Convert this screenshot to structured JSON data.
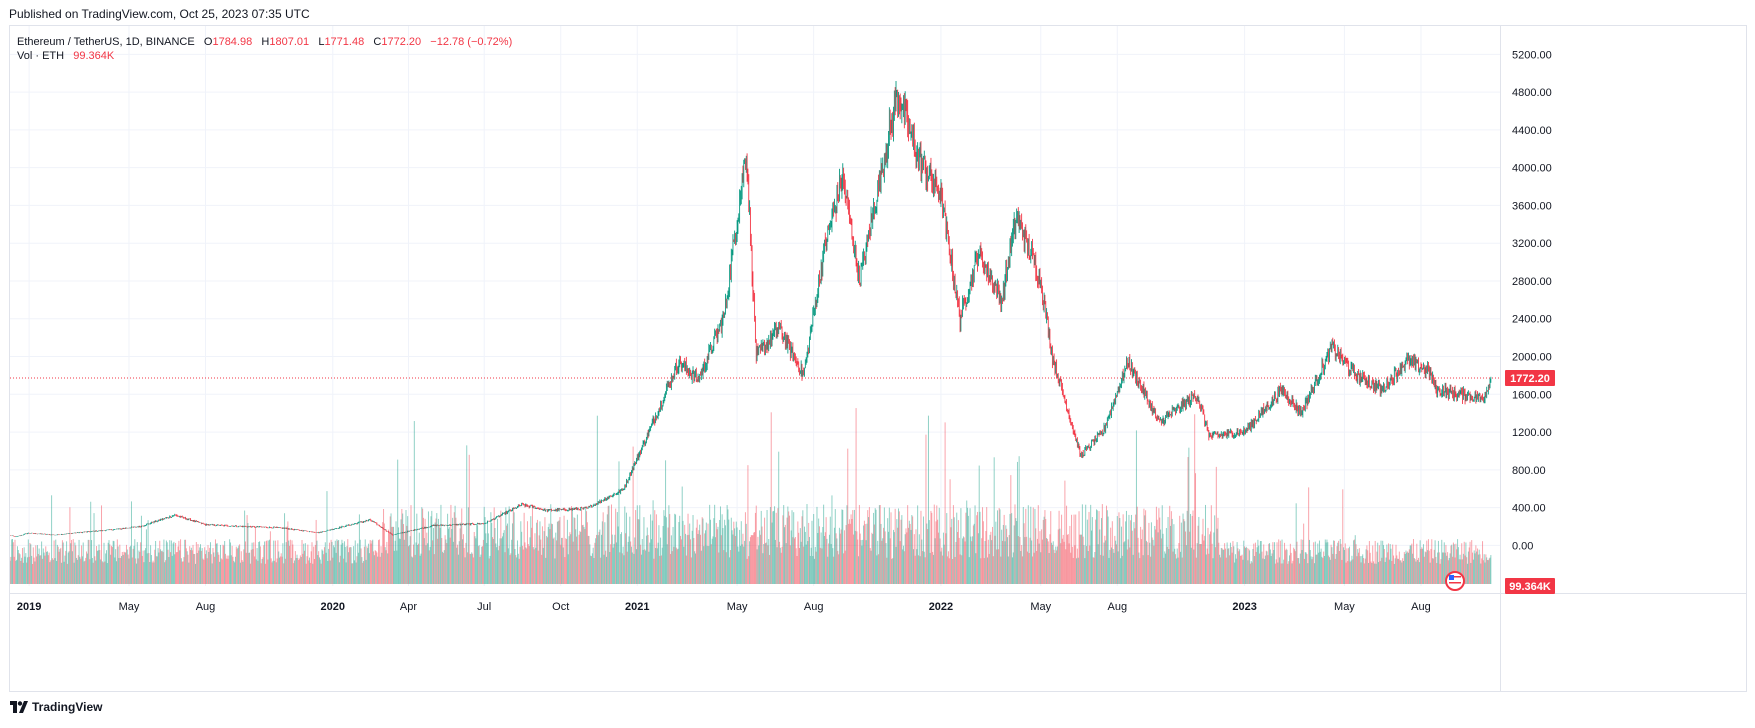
{
  "header": {
    "published": "Published on TradingView.com, Oct 25, 2023 07:35 UTC"
  },
  "legend": {
    "symbol": "Ethereum / TetherUS, 1D, BINANCE",
    "o_label": "O",
    "o_value": "1784.98",
    "h_label": "H",
    "h_value": "1807.01",
    "l_label": "L",
    "l_value": "1771.48",
    "c_label": "C",
    "c_value": "1772.20",
    "change": "−12.78 (−0.72%)",
    "vol_label": "Vol · ETH",
    "vol_value": "99.364K"
  },
  "footer": {
    "brand": "TradingView"
  },
  "colors": {
    "up": "#089981",
    "down": "#f23645",
    "grid": "#f0f3fa",
    "axis_text": "#131722",
    "last_price": "#f23645"
  },
  "chart_data": {
    "type": "candlestick",
    "title": "Ethereum / TetherUS, 1D, BINANCE",
    "y_ticks": [
      "0.00",
      "400.00",
      "800.00",
      "1200.00",
      "1600.00",
      "2000.00",
      "2400.00",
      "2800.00",
      "3200.00",
      "3600.00",
      "4000.00",
      "4400.00",
      "4800.00",
      "5200.00"
    ],
    "y_tick_values": [
      0,
      400,
      800,
      1200,
      1600,
      2000,
      2400,
      2800,
      3200,
      3600,
      4000,
      4400,
      4800,
      5200
    ],
    "ylim": [
      -430,
      5500
    ],
    "x_ticks": [
      "2019",
      "May",
      "Aug",
      "2020",
      "Apr",
      "Jul",
      "Oct",
      "2021",
      "May",
      "Aug",
      "2022",
      "May",
      "Aug",
      "2023",
      "May",
      "Aug"
    ],
    "x_tick_dates": [
      "2019-01-01",
      "2019-05-01",
      "2019-08-01",
      "2020-01-01",
      "2020-04-01",
      "2020-07-01",
      "2020-10-01",
      "2021-01-01",
      "2021-05-01",
      "2021-08-01",
      "2022-01-01",
      "2022-05-01",
      "2022-08-01",
      "2023-01-01",
      "2023-05-01",
      "2023-08-01"
    ],
    "x_range": [
      "2018-12-09",
      "2023-11-04"
    ],
    "bold_ticks": [
      "2019",
      "2020",
      "2021",
      "2022",
      "2023"
    ],
    "price_series_approx": [
      {
        "date": "2018-12-09",
        "close": 105
      },
      {
        "date": "2018-12-16",
        "close": 90
      },
      {
        "date": "2018-12-31",
        "close": 130
      },
      {
        "date": "2019-02-01",
        "close": 110
      },
      {
        "date": "2019-03-01",
        "close": 135
      },
      {
        "date": "2019-04-15",
        "close": 170
      },
      {
        "date": "2019-05-15",
        "close": 200
      },
      {
        "date": "2019-06-25",
        "close": 320
      },
      {
        "date": "2019-08-01",
        "close": 220
      },
      {
        "date": "2019-09-15",
        "close": 200
      },
      {
        "date": "2019-11-01",
        "close": 185
      },
      {
        "date": "2019-12-15",
        "close": 135
      },
      {
        "date": "2020-02-15",
        "close": 270
      },
      {
        "date": "2020-03-13",
        "close": 110
      },
      {
        "date": "2020-05-01",
        "close": 210
      },
      {
        "date": "2020-07-01",
        "close": 230
      },
      {
        "date": "2020-08-15",
        "close": 430
      },
      {
        "date": "2020-09-15",
        "close": 370
      },
      {
        "date": "2020-11-01",
        "close": 390
      },
      {
        "date": "2020-12-15",
        "close": 590
      },
      {
        "date": "2021-01-10",
        "close": 1100
      },
      {
        "date": "2021-02-20",
        "close": 1950
      },
      {
        "date": "2021-03-15",
        "close": 1750
      },
      {
        "date": "2021-04-15",
        "close": 2400
      },
      {
        "date": "2021-05-12",
        "close": 4200
      },
      {
        "date": "2021-05-24",
        "close": 2000
      },
      {
        "date": "2021-06-20",
        "close": 2300
      },
      {
        "date": "2021-07-20",
        "close": 1800
      },
      {
        "date": "2021-08-15",
        "close": 3200
      },
      {
        "date": "2021-09-05",
        "close": 3900
      },
      {
        "date": "2021-09-25",
        "close": 2800
      },
      {
        "date": "2021-11-10",
        "close": 4800
      },
      {
        "date": "2021-12-05",
        "close": 4100
      },
      {
        "date": "2022-01-01",
        "close": 3700
      },
      {
        "date": "2022-01-24",
        "close": 2400
      },
      {
        "date": "2022-02-15",
        "close": 3100
      },
      {
        "date": "2022-03-15",
        "close": 2600
      },
      {
        "date": "2022-04-02",
        "close": 3500
      },
      {
        "date": "2022-05-01",
        "close": 2800
      },
      {
        "date": "2022-05-15",
        "close": 2000
      },
      {
        "date": "2022-06-18",
        "close": 950
      },
      {
        "date": "2022-07-15",
        "close": 1200
      },
      {
        "date": "2022-08-14",
        "close": 1950
      },
      {
        "date": "2022-09-20",
        "close": 1300
      },
      {
        "date": "2022-11-05",
        "close": 1600
      },
      {
        "date": "2022-11-20",
        "close": 1150
      },
      {
        "date": "2023-01-01",
        "close": 1200
      },
      {
        "date": "2023-02-15",
        "close": 1650
      },
      {
        "date": "2023-03-10",
        "close": 1400
      },
      {
        "date": "2023-04-16",
        "close": 2100
      },
      {
        "date": "2023-05-15",
        "close": 1800
      },
      {
        "date": "2023-06-15",
        "close": 1650
      },
      {
        "date": "2023-07-15",
        "close": 1950
      },
      {
        "date": "2023-08-10",
        "close": 1850
      },
      {
        "date": "2023-08-20",
        "close": 1650
      },
      {
        "date": "2023-09-15",
        "close": 1600
      },
      {
        "date": "2023-10-15",
        "close": 1560
      },
      {
        "date": "2023-10-24",
        "close": 1772.2
      }
    ],
    "volume_peaks_approx": [
      {
        "date": "2020-03-13",
        "value": 1100
      },
      {
        "date": "2021-05-19",
        "value": 940
      },
      {
        "date": "2022-06-18",
        "value": 950
      },
      {
        "date": "2022-11-09",
        "value": 770
      }
    ],
    "last_price": {
      "value": 1772.2,
      "label": "1772.20"
    },
    "last_volume": {
      "label": "99.364K"
    }
  }
}
